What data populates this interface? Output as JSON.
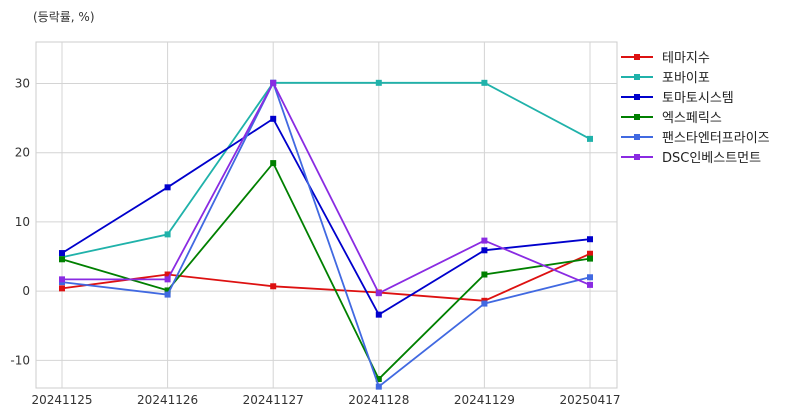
{
  "unit_label": "(등락률, %)",
  "chart_data": {
    "type": "line",
    "categories": [
      "20241125",
      "20241126",
      "20241127",
      "20241128",
      "20241129",
      "20250417"
    ],
    "ylim": [
      -14,
      36
    ],
    "yticks": [
      -10,
      0,
      10,
      20,
      30
    ],
    "grid": true,
    "legend_position": "right",
    "series": [
      {
        "name": "테마지수",
        "color": "#dd1111",
        "values": [
          0.4,
          2.4,
          0.7,
          -0.2,
          -1.4,
          5.4
        ]
      },
      {
        "name": "포바이포",
        "color": "#20b2aa",
        "values": [
          4.9,
          8.2,
          30.1,
          30.1,
          30.1,
          22.0
        ]
      },
      {
        "name": "토마토시스템",
        "color": "#0000cc",
        "values": [
          5.5,
          15.0,
          24.9,
          -3.4,
          5.9,
          7.5
        ]
      },
      {
        "name": "엑스페릭스",
        "color": "#008000",
        "values": [
          4.6,
          0.1,
          18.5,
          -12.7,
          2.4,
          4.7
        ]
      },
      {
        "name": "팬스타엔터프라이즈",
        "color": "#4169e1",
        "values": [
          1.3,
          -0.5,
          30.1,
          -13.8,
          -1.8,
          2.0
        ]
      },
      {
        "name": "DSC인베스트먼트",
        "color": "#8a2be2",
        "values": [
          1.7,
          1.7,
          30.1,
          -0.3,
          7.3,
          0.9
        ]
      }
    ]
  }
}
